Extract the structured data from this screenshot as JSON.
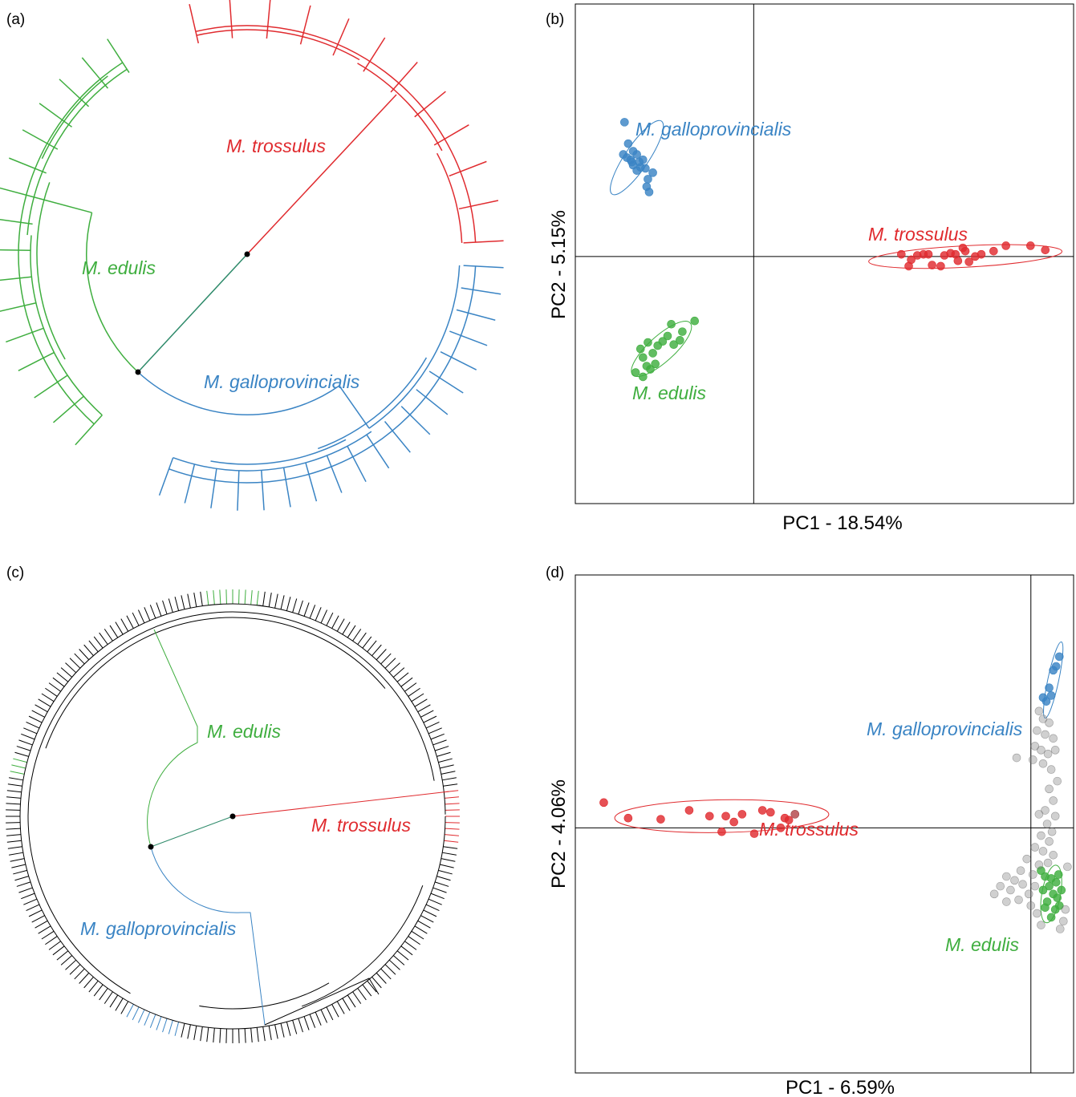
{
  "colors": {
    "trossulus": "#e02b2f",
    "galloprovincialis": "#3a84c4",
    "edulis": "#3fae3f",
    "admixed": "#8a8a8a",
    "black": "#000000"
  },
  "panels": {
    "a": {
      "label": "(a)"
    },
    "b": {
      "label": "(b)"
    },
    "c": {
      "label": "(c)"
    },
    "d": {
      "label": "(d)"
    }
  },
  "species": {
    "trossulus": "M. trossulus",
    "galloprovincialis": "M. galloprovincialis",
    "edulis": "M. edulis"
  },
  "chart_data": [
    {
      "panel": "a",
      "type": "diagram",
      "kind": "circular phylogenetic tree",
      "clades": [
        {
          "name": "M. trossulus",
          "color": "#e02b2f",
          "tips": 12
        },
        {
          "name": "M. galloprovincialis",
          "color": "#3a84c4",
          "tips": 19
        },
        {
          "name": "M. edulis",
          "color": "#3fae3f",
          "tips": 16
        }
      ]
    },
    {
      "panel": "b",
      "type": "scatter",
      "xlabel": "PC1 - 18.54%",
      "ylabel": "PC2 - 5.15%",
      "xlim": [
        -1.45,
        2.6
      ],
      "ylim": [
        -2.3,
        2.35
      ],
      "grid": false,
      "series": [
        {
          "name": "M. galloprovincialis",
          "color": "#3a84c4",
          "points": [
            [
              -1.05,
              1.25
            ],
            [
              -1.02,
              1.05
            ],
            [
              -1.06,
              0.95
            ],
            [
              -0.98,
              0.98
            ],
            [
              -0.95,
              0.95
            ],
            [
              -0.98,
              0.85
            ],
            [
              -0.92,
              0.83
            ],
            [
              -1.0,
              0.9
            ],
            [
              -0.93,
              0.88
            ],
            [
              -0.88,
              0.82
            ],
            [
              -0.82,
              0.78
            ],
            [
              -0.86,
              0.72
            ],
            [
              -0.87,
              0.65
            ],
            [
              -0.85,
              0.6
            ],
            [
              -0.9,
              0.9
            ],
            [
              -0.95,
              0.8
            ],
            [
              -1.03,
              0.92
            ],
            [
              -0.99,
              0.88
            ]
          ],
          "ellipse": {
            "cx": -0.95,
            "cy": 0.92,
            "rx": 0.41,
            "ry": 0.11,
            "angle": -56
          }
        },
        {
          "name": "M. trossulus",
          "color": "#e02b2f",
          "points": [
            [
              1.2,
              0.02
            ],
            [
              1.28,
              -0.03
            ],
            [
              1.33,
              0.01
            ],
            [
              1.38,
              0.02
            ],
            [
              1.45,
              -0.08
            ],
            [
              1.55,
              0.01
            ],
            [
              1.6,
              0.03
            ],
            [
              1.64,
              0.02
            ],
            [
              1.7,
              0.08
            ],
            [
              1.75,
              -0.05
            ],
            [
              1.8,
              0.0
            ],
            [
              1.85,
              0.02
            ],
            [
              1.95,
              0.05
            ],
            [
              2.05,
              0.1
            ],
            [
              2.25,
              0.1
            ],
            [
              2.37,
              0.06
            ],
            [
              1.26,
              -0.09
            ],
            [
              1.52,
              -0.09
            ],
            [
              1.72,
              0.05
            ],
            [
              1.42,
              0.02
            ],
            [
              1.66,
              -0.04
            ]
          ],
          "ellipse": {
            "cx": 1.72,
            "cy": 0.0,
            "rx": 0.9,
            "ry": 0.1,
            "angle": -3
          }
        },
        {
          "name": "M. edulis",
          "color": "#3fae3f",
          "points": [
            [
              -0.48,
              -0.6
            ],
            [
              -0.67,
              -0.63
            ],
            [
              -0.58,
              -0.7
            ],
            [
              -0.74,
              -0.79
            ],
            [
              -0.78,
              -0.83
            ],
            [
              -0.86,
              -0.8
            ],
            [
              -0.92,
              -0.86
            ],
            [
              -0.9,
              -0.94
            ],
            [
              -0.7,
              -0.74
            ],
            [
              -0.65,
              -0.82
            ],
            [
              -0.6,
              -0.78
            ],
            [
              -0.87,
              -1.02
            ],
            [
              -0.8,
              -1.0
            ],
            [
              -0.84,
              -1.05
            ],
            [
              -0.96,
              -1.08
            ],
            [
              -0.9,
              -1.12
            ],
            [
              -0.82,
              -0.9
            ]
          ],
          "ellipse": {
            "cx": -0.75,
            "cy": -0.86,
            "rx": 0.36,
            "ry": 0.12,
            "angle": -42
          }
        }
      ]
    },
    {
      "panel": "c",
      "type": "diagram",
      "kind": "circular phylogenetic tree",
      "clades": [
        {
          "name": "M. edulis",
          "color": "#3fae3f"
        },
        {
          "name": "M. trossulus",
          "color": "#e02b2f"
        },
        {
          "name": "M. galloprovincialis",
          "color": "#3a84c4"
        }
      ],
      "tip_count": 220
    },
    {
      "panel": "d",
      "type": "scatter",
      "xlabel": "PC1 - 6.59%",
      "ylabel": "PC2 - 4.06%",
      "xlim": [
        -11.2,
        1.05
      ],
      "ylim": [
        -6.3,
        6.5
      ],
      "grid": false,
      "series": [
        {
          "name": "M. trossulus",
          "color": "#e02b2f",
          "points": [
            [
              -10.5,
              0.65
            ],
            [
              -9.9,
              0.25
            ],
            [
              -9.1,
              0.22
            ],
            [
              -8.4,
              0.45
            ],
            [
              -7.9,
              0.3
            ],
            [
              -7.6,
              -0.1
            ],
            [
              -7.5,
              0.3
            ],
            [
              -7.3,
              0.15
            ],
            [
              -7.1,
              0.35
            ],
            [
              -6.8,
              -0.15
            ],
            [
              -6.6,
              0.45
            ],
            [
              -6.4,
              0.4
            ],
            [
              -6.15,
              0.0
            ],
            [
              -6.05,
              0.25
            ],
            [
              -5.95,
              0.2
            ],
            [
              -5.8,
              0.35
            ]
          ],
          "ellipse": {
            "cx": -7.6,
            "cy": 0.3,
            "rx": 2.75,
            "ry": 0.42,
            "angle": -1
          }
        },
        {
          "name": "M. galloprovincialis",
          "color": "#3a84c4",
          "points": [
            [
              0.7,
              4.4
            ],
            [
              0.62,
              4.15
            ],
            [
              0.55,
              4.05
            ],
            [
              0.45,
              3.6
            ],
            [
              0.3,
              3.35
            ],
            [
              0.38,
              3.25
            ],
            [
              0.5,
              3.4
            ]
          ],
          "ellipse": {
            "cx": 0.55,
            "cy": 3.8,
            "rx": 1.0,
            "ry": 0.14,
            "angle": -78
          }
        },
        {
          "name": "M. edulis",
          "color": "#3fae3f",
          "points": [
            [
              0.25,
              -1.1
            ],
            [
              0.35,
              -1.25
            ],
            [
              0.5,
              -1.3
            ],
            [
              0.62,
              -1.4
            ],
            [
              0.45,
              -1.5
            ],
            [
              0.3,
              -1.6
            ],
            [
              0.55,
              -1.7
            ],
            [
              0.65,
              -1.8
            ],
            [
              0.75,
              -1.6
            ],
            [
              0.4,
              -1.9
            ],
            [
              0.6,
              -2.1
            ],
            [
              0.7,
              -2.0
            ],
            [
              0.5,
              -2.3
            ],
            [
              0.35,
              -2.05
            ],
            [
              0.68,
              -1.2
            ]
          ],
          "ellipse": {
            "cx": 0.5,
            "cy": -1.7,
            "rx": 0.75,
            "ry": 0.24,
            "angle": -80
          }
        },
        {
          "name": "",
          "color": "#8a8a8a",
          "points": [
            [
              0.2,
              3.0
            ],
            [
              0.3,
              2.8
            ],
            [
              0.45,
              2.7
            ],
            [
              0.15,
              2.5
            ],
            [
              0.35,
              2.4
            ],
            [
              0.55,
              2.3
            ],
            [
              0.1,
              2.1
            ],
            [
              0.25,
              2.0
            ],
            [
              0.42,
              1.9
            ],
            [
              0.6,
              2.0
            ],
            [
              0.05,
              1.75
            ],
            [
              0.3,
              1.65
            ],
            [
              0.5,
              1.5
            ],
            [
              0.65,
              1.2
            ],
            [
              0.45,
              1.0
            ],
            [
              0.55,
              0.7
            ],
            [
              0.35,
              0.45
            ],
            [
              0.2,
              0.35
            ],
            [
              0.4,
              0.1
            ],
            [
              0.25,
              -0.2
            ],
            [
              0.45,
              -0.35
            ],
            [
              0.1,
              -0.5
            ],
            [
              0.3,
              -0.6
            ],
            [
              0.55,
              -0.7
            ],
            [
              -0.1,
              -0.8
            ],
            [
              0.2,
              -0.95
            ],
            [
              0.42,
              -0.9
            ],
            [
              -0.25,
              -1.1
            ],
            [
              0.05,
              -1.2
            ],
            [
              -0.4,
              -1.35
            ],
            [
              -0.6,
              -1.25
            ],
            [
              -0.75,
              -1.5
            ],
            [
              -0.5,
              -1.6
            ],
            [
              -0.2,
              -1.45
            ],
            [
              -0.9,
              -1.7
            ],
            [
              -0.3,
              -1.85
            ],
            [
              0.1,
              -1.5
            ],
            [
              0.0,
              -2.0
            ],
            [
              0.15,
              -2.2
            ],
            [
              0.8,
              -2.4
            ],
            [
              0.72,
              -2.6
            ],
            [
              0.25,
              -2.5
            ],
            [
              -0.05,
              -1.7
            ],
            [
              0.52,
              -0.1
            ],
            [
              0.6,
              0.3
            ],
            [
              -0.6,
              -1.9
            ],
            [
              0.85,
              -2.1
            ],
            [
              0.9,
              -1.0
            ],
            [
              -0.35,
              1.8
            ],
            [
              -5.8,
              0.35
            ]
          ]
        }
      ]
    }
  ]
}
